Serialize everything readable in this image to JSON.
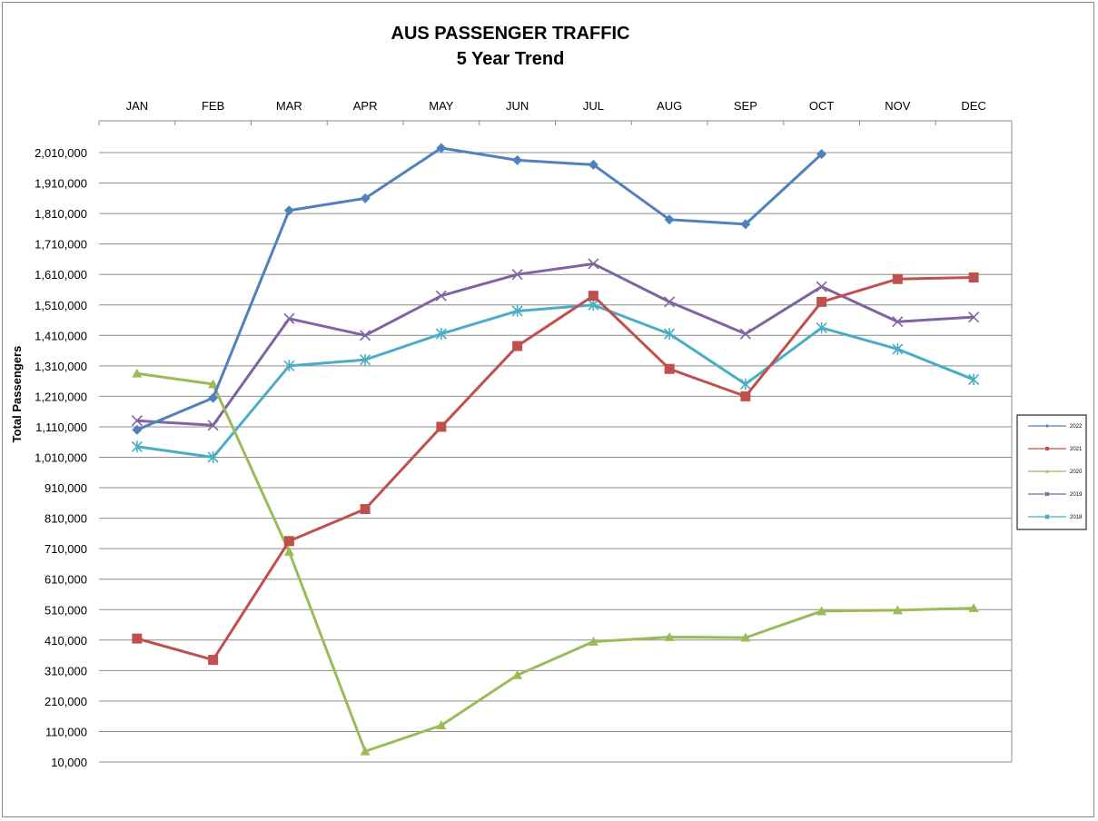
{
  "chart_data": {
    "type": "line",
    "title": "AUS PASSENGER TRAFFIC",
    "subtitle": "5 Year Trend",
    "xlabel": "",
    "ylabel": "Total Passengers",
    "categories": [
      "JAN",
      "FEB",
      "MAR",
      "APR",
      "MAY",
      "JUN",
      "JUL",
      "AUG",
      "SEP",
      "OCT",
      "NOV",
      "DEC"
    ],
    "yticks": [
      "2,010,000",
      "1,910,000",
      "1,810,000",
      "1,710,000",
      "1,610,000",
      "1,510,000",
      "1,410,000",
      "1,310,000",
      "1,210,000",
      "1,110,000",
      "1,010,000",
      "910,000",
      "810,000",
      "710,000",
      "610,000",
      "510,000",
      "410,000",
      "310,000",
      "210,000",
      "110,000",
      "10,000"
    ],
    "ylim": [
      10000,
      2010000
    ],
    "ytick_step": 100000,
    "grid": true,
    "legend": "right",
    "series": [
      {
        "name": "2022",
        "color": "#4f81bd",
        "marker": "diamond",
        "values": [
          1100000,
          1205000,
          1820000,
          1860000,
          2025000,
          1985000,
          1970000,
          1790000,
          1775000,
          2005000,
          null,
          null
        ]
      },
      {
        "name": "2021",
        "color": "#c0504d",
        "marker": "square",
        "values": [
          415000,
          345000,
          735000,
          840000,
          1110000,
          1375000,
          1540000,
          1300000,
          1210000,
          1520000,
          1595000,
          1600000
        ]
      },
      {
        "name": "2020",
        "color": "#9bbb59",
        "marker": "triangle",
        "values": [
          1285000,
          1250000,
          700000,
          45000,
          130000,
          295000,
          405000,
          420000,
          418000,
          505000,
          508000,
          515000
        ]
      },
      {
        "name": "2019",
        "color": "#8064a2",
        "marker": "x",
        "values": [
          1130000,
          1115000,
          1465000,
          1410000,
          1540000,
          1610000,
          1645000,
          1520000,
          1415000,
          1570000,
          1455000,
          1470000
        ]
      },
      {
        "name": "2018",
        "color": "#4bacc6",
        "marker": "star",
        "values": [
          1045000,
          1010000,
          1310000,
          1330000,
          1415000,
          1490000,
          1510000,
          1415000,
          1250000,
          1435000,
          1365000,
          1265000
        ]
      }
    ]
  }
}
